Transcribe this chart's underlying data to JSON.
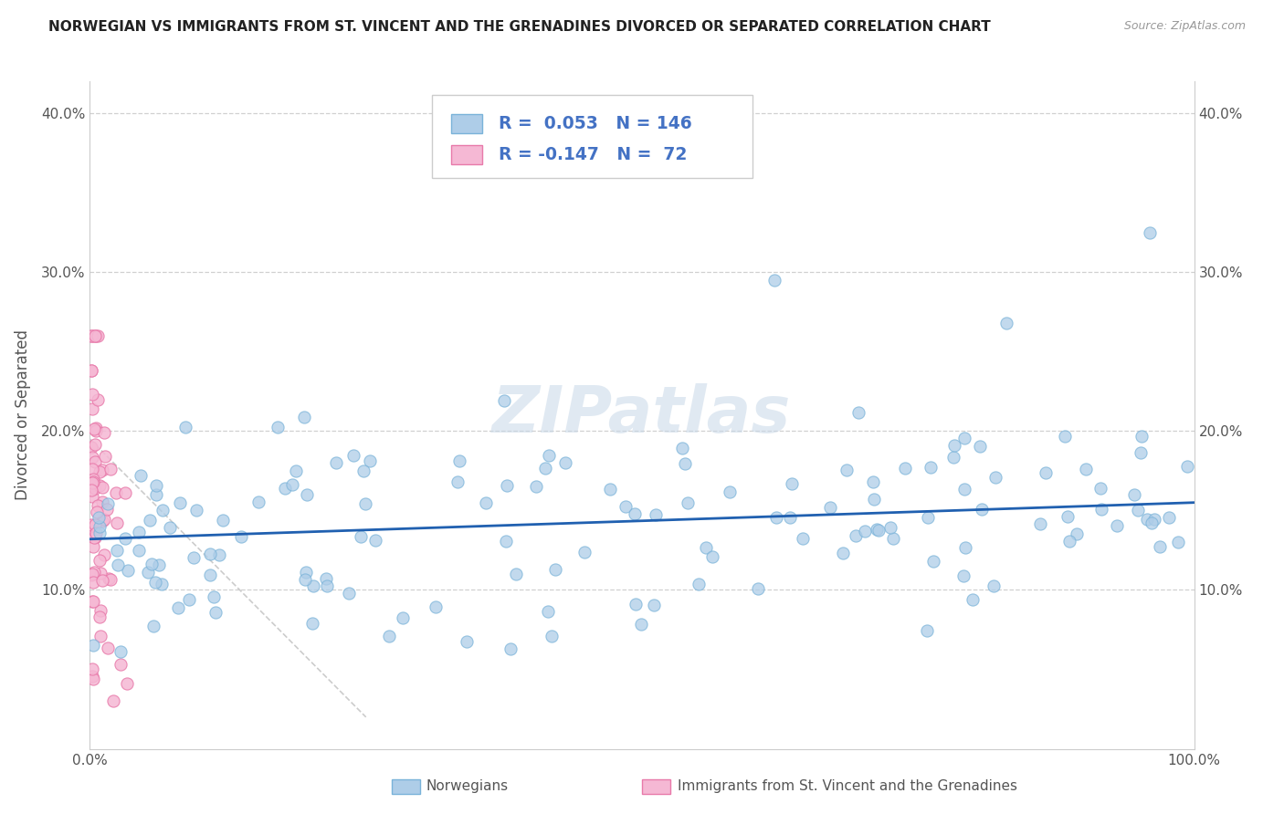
{
  "title": "NORWEGIAN VS IMMIGRANTS FROM ST. VINCENT AND THE GRENADINES DIVORCED OR SEPARATED CORRELATION CHART",
  "source_text": "Source: ZipAtlas.com",
  "ylabel": "Divorced or Separated",
  "legend_label_blue": "Norwegians",
  "legend_label_pink": "Immigrants from St. Vincent and the Grenadines",
  "R_blue": 0.053,
  "N_blue": 146,
  "R_pink": -0.147,
  "N_pink": 72,
  "blue_color": "#7ab3d9",
  "blue_fill": "#aecde8",
  "pink_color": "#e87aaa",
  "pink_fill": "#f5b8d4",
  "trendline_blue": "#2060b0",
  "trendline_pink": "#cccccc",
  "xmin": 0.0,
  "xmax": 1.0,
  "ymin": 0.0,
  "ymax": 0.42,
  "background_color": "#ffffff",
  "watermark": "ZIPatlas"
}
